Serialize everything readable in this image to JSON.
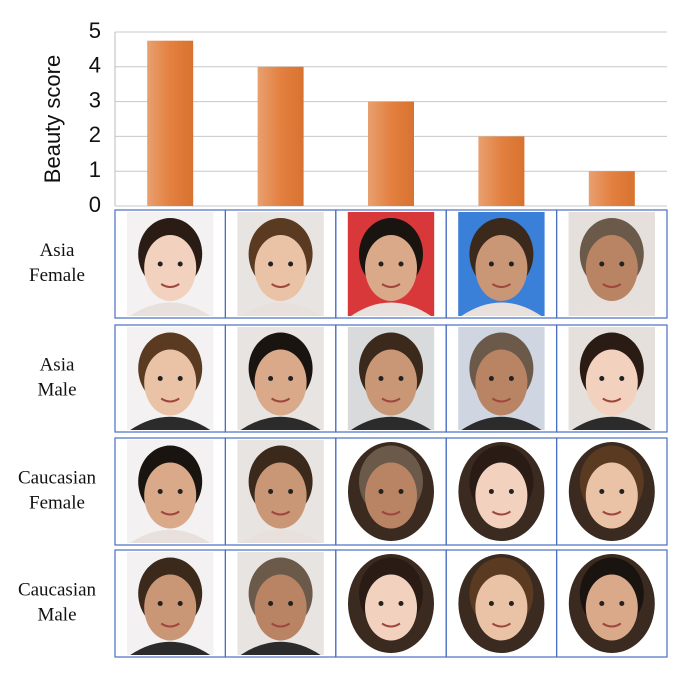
{
  "chart_data": {
    "type": "bar",
    "y_label": "Beauty score",
    "categories": [
      null,
      null,
      null,
      null,
      null
    ],
    "values": [
      4.75,
      4,
      3,
      2,
      1
    ],
    "color": "#e38040",
    "ylim": [
      0,
      5
    ],
    "yticks": [
      0,
      1,
      2,
      3,
      4,
      5
    ],
    "grid": true
  },
  "photo_grid": {
    "rows": [
      {
        "label": [
          "Asia",
          "Female"
        ]
      },
      {
        "label": [
          "Asia",
          "Male"
        ]
      },
      {
        "label": [
          "Caucasian",
          "Female"
        ]
      },
      {
        "label": [
          "Caucasian",
          "Male"
        ]
      }
    ]
  }
}
